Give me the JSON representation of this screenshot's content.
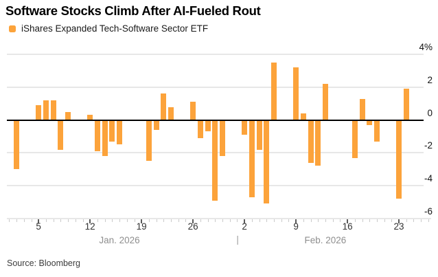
{
  "title": "Software Stocks Climb After AI-Fueled Rout",
  "legend": {
    "label": "iShares Expanded Tech-Software Sector ETF",
    "swatch_color": "#FCA33B"
  },
  "source": "Source: Bloomberg",
  "colors": {
    "bar": "#FCA33B",
    "gridline": "#e7e7e7",
    "zero_line": "#000000",
    "month_label": "#8e8e8e"
  },
  "chart_data": {
    "type": "bar",
    "title": "Software Stocks Climb After AI-Fueled Rout",
    "series_name": "iShares Expanded Tech-Software Sector ETF",
    "unit": "%",
    "ylabel": "",
    "xlabel": "",
    "ylim": [
      -6,
      4
    ],
    "grid": true,
    "yticks": [
      4,
      2,
      0,
      -2,
      -4,
      -6
    ],
    "ytick_labels": [
      "4%",
      "2",
      "0",
      "-2",
      "-4",
      "-6"
    ],
    "xticks": [
      {
        "month": "Jan",
        "day": 5,
        "label": "5"
      },
      {
        "month": "Jan",
        "day": 12,
        "label": "12"
      },
      {
        "month": "Jan",
        "day": 19,
        "label": "19"
      },
      {
        "month": "Jan",
        "day": 26,
        "label": "26"
      },
      {
        "month": "Feb",
        "day": 2,
        "label": "2"
      },
      {
        "month": "Feb",
        "day": 9,
        "label": "9"
      },
      {
        "month": "Feb",
        "day": 16,
        "label": "16"
      },
      {
        "month": "Feb",
        "day": 23,
        "label": "23"
      }
    ],
    "x_axis": {
      "months": [
        {
          "name": "Jan",
          "label": "Jan. 2026"
        },
        {
          "name": "Feb",
          "label": "Feb. 2026"
        }
      ],
      "month_separator": "|"
    },
    "points": [
      {
        "month": "Jan",
        "day": 2,
        "value": -3.0
      },
      {
        "month": "Jan",
        "day": 5,
        "value": 0.9
      },
      {
        "month": "Jan",
        "day": 6,
        "value": 1.2
      },
      {
        "month": "Jan",
        "day": 7,
        "value": 1.2
      },
      {
        "month": "Jan",
        "day": 8,
        "value": -1.8
      },
      {
        "month": "Jan",
        "day": 9,
        "value": 0.5
      },
      {
        "month": "Jan",
        "day": 12,
        "value": 0.3
      },
      {
        "month": "Jan",
        "day": 13,
        "value": -1.9
      },
      {
        "month": "Jan",
        "day": 14,
        "value": -2.2
      },
      {
        "month": "Jan",
        "day": 15,
        "value": -1.3
      },
      {
        "month": "Jan",
        "day": 16,
        "value": -1.5
      },
      {
        "month": "Jan",
        "day": 20,
        "value": -2.5
      },
      {
        "month": "Jan",
        "day": 21,
        "value": -0.6
      },
      {
        "month": "Jan",
        "day": 22,
        "value": 1.6
      },
      {
        "month": "Jan",
        "day": 23,
        "value": 0.8
      },
      {
        "month": "Jan",
        "day": 26,
        "value": 1.1
      },
      {
        "month": "Jan",
        "day": 27,
        "value": -1.1
      },
      {
        "month": "Jan",
        "day": 28,
        "value": -0.7
      },
      {
        "month": "Jan",
        "day": 29,
        "value": -4.9
      },
      {
        "month": "Jan",
        "day": 30,
        "value": -2.2
      },
      {
        "month": "Feb",
        "day": 2,
        "value": -0.9
      },
      {
        "month": "Feb",
        "day": 3,
        "value": -4.7
      },
      {
        "month": "Feb",
        "day": 4,
        "value": -1.8
      },
      {
        "month": "Feb",
        "day": 5,
        "value": -5.1
      },
      {
        "month": "Feb",
        "day": 6,
        "value": 3.5
      },
      {
        "month": "Feb",
        "day": 9,
        "value": 3.2
      },
      {
        "month": "Feb",
        "day": 10,
        "value": 0.4
      },
      {
        "month": "Feb",
        "day": 11,
        "value": -2.6
      },
      {
        "month": "Feb",
        "day": 12,
        "value": -2.8
      },
      {
        "month": "Feb",
        "day": 13,
        "value": 2.2
      },
      {
        "month": "Feb",
        "day": 17,
        "value": -2.3
      },
      {
        "month": "Feb",
        "day": 18,
        "value": 1.3
      },
      {
        "month": "Feb",
        "day": 19,
        "value": -0.3
      },
      {
        "month": "Feb",
        "day": 20,
        "value": -1.3
      },
      {
        "month": "Feb",
        "day": 23,
        "value": -4.8
      },
      {
        "month": "Feb",
        "day": 24,
        "value": 1.9
      }
    ]
  }
}
